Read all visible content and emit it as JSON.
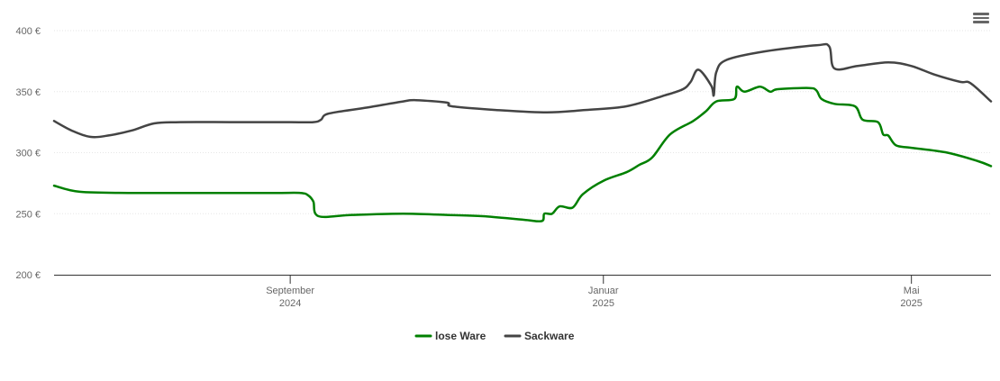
{
  "chart_data": {
    "type": "line",
    "title": "",
    "xlabel": "",
    "ylabel": "",
    "ylim": [
      200,
      400
    ],
    "y_ticks": [
      200,
      250,
      300,
      350,
      400
    ],
    "y_tick_format": "{v} €",
    "x_range": [
      "2024-06-01",
      "2025-06-01"
    ],
    "x_ticks": [
      {
        "date": "2024-09-01",
        "line1": "September",
        "line2": "2024"
      },
      {
        "date": "2025-01-01",
        "line1": "Januar",
        "line2": "2025"
      },
      {
        "date": "2025-05-01",
        "line1": "Mai",
        "line2": "2025"
      }
    ],
    "grid": true,
    "legend_position": "bottom-center",
    "series": [
      {
        "name": "lose Ware",
        "color": "#008000",
        "points": [
          [
            "2024-06-01",
            273
          ],
          [
            "2024-06-11",
            268
          ],
          [
            "2024-07-01",
            267
          ],
          [
            "2024-08-01",
            267
          ],
          [
            "2024-08-26",
            267
          ],
          [
            "2024-09-05",
            267
          ],
          [
            "2024-09-08",
            265
          ],
          [
            "2024-09-10",
            260
          ],
          [
            "2024-09-12",
            248
          ],
          [
            "2024-09-25",
            249
          ],
          [
            "2024-10-15",
            250
          ],
          [
            "2024-11-01",
            249
          ],
          [
            "2024-11-15",
            248
          ],
          [
            "2024-12-01",
            245
          ],
          [
            "2024-12-08",
            244
          ],
          [
            "2024-12-09",
            250
          ],
          [
            "2024-12-12",
            250
          ],
          [
            "2024-12-15",
            256
          ],
          [
            "2024-12-20",
            255
          ],
          [
            "2024-12-24",
            266
          ],
          [
            "2025-01-01",
            277
          ],
          [
            "2025-01-10",
            284
          ],
          [
            "2025-01-15",
            290
          ],
          [
            "2025-01-20",
            296
          ],
          [
            "2025-01-27",
            315
          ],
          [
            "2025-02-05",
            326
          ],
          [
            "2025-02-10",
            334
          ],
          [
            "2025-02-14",
            342
          ],
          [
            "2025-02-21",
            344
          ],
          [
            "2025-02-22",
            354
          ],
          [
            "2025-02-25",
            350
          ],
          [
            "2025-03-03",
            354
          ],
          [
            "2025-03-07",
            350
          ],
          [
            "2025-03-10",
            352
          ],
          [
            "2025-03-22",
            353
          ],
          [
            "2025-03-25",
            351
          ],
          [
            "2025-03-27",
            344
          ],
          [
            "2025-04-01",
            340
          ],
          [
            "2025-04-09",
            338
          ],
          [
            "2025-04-12",
            327
          ],
          [
            "2025-04-18",
            325
          ],
          [
            "2025-04-20",
            315
          ],
          [
            "2025-04-22",
            314
          ],
          [
            "2025-04-25",
            306
          ],
          [
            "2025-05-01",
            304
          ],
          [
            "2025-05-15",
            300
          ],
          [
            "2025-05-27",
            293
          ],
          [
            "2025-06-01",
            289
          ]
        ]
      },
      {
        "name": "Sackware",
        "color": "#444444",
        "points": [
          [
            "2024-06-01",
            326
          ],
          [
            "2024-06-08",
            318
          ],
          [
            "2024-06-15",
            313
          ],
          [
            "2024-06-22",
            314
          ],
          [
            "2024-07-01",
            318
          ],
          [
            "2024-07-10",
            324
          ],
          [
            "2024-07-20",
            325
          ],
          [
            "2024-08-10",
            325
          ],
          [
            "2024-09-01",
            325
          ],
          [
            "2024-09-10",
            325
          ],
          [
            "2024-09-13",
            327
          ],
          [
            "2024-09-16",
            332
          ],
          [
            "2024-10-01",
            337
          ],
          [
            "2024-10-15",
            342
          ],
          [
            "2024-10-20",
            343
          ],
          [
            "2024-11-01",
            341
          ],
          [
            "2024-11-03",
            338
          ],
          [
            "2024-11-20",
            335
          ],
          [
            "2024-12-10",
            333
          ],
          [
            "2024-12-25",
            335
          ],
          [
            "2025-01-10",
            338
          ],
          [
            "2025-01-25",
            347
          ],
          [
            "2025-02-01",
            352
          ],
          [
            "2025-02-04",
            358
          ],
          [
            "2025-02-07",
            368
          ],
          [
            "2025-02-12",
            355
          ],
          [
            "2025-02-13",
            347
          ],
          [
            "2025-02-14",
            366
          ],
          [
            "2025-02-18",
            376
          ],
          [
            "2025-03-05",
            383
          ],
          [
            "2025-03-25",
            388
          ],
          [
            "2025-03-30",
            387
          ],
          [
            "2025-04-01",
            369
          ],
          [
            "2025-04-10",
            371
          ],
          [
            "2025-04-22",
            374
          ],
          [
            "2025-05-01",
            371
          ],
          [
            "2025-05-10",
            364
          ],
          [
            "2025-05-20",
            358
          ],
          [
            "2025-05-24",
            357
          ],
          [
            "2025-06-01",
            342
          ]
        ]
      }
    ]
  },
  "toolbar": {
    "menu_icon": "hamburger-menu-icon"
  }
}
